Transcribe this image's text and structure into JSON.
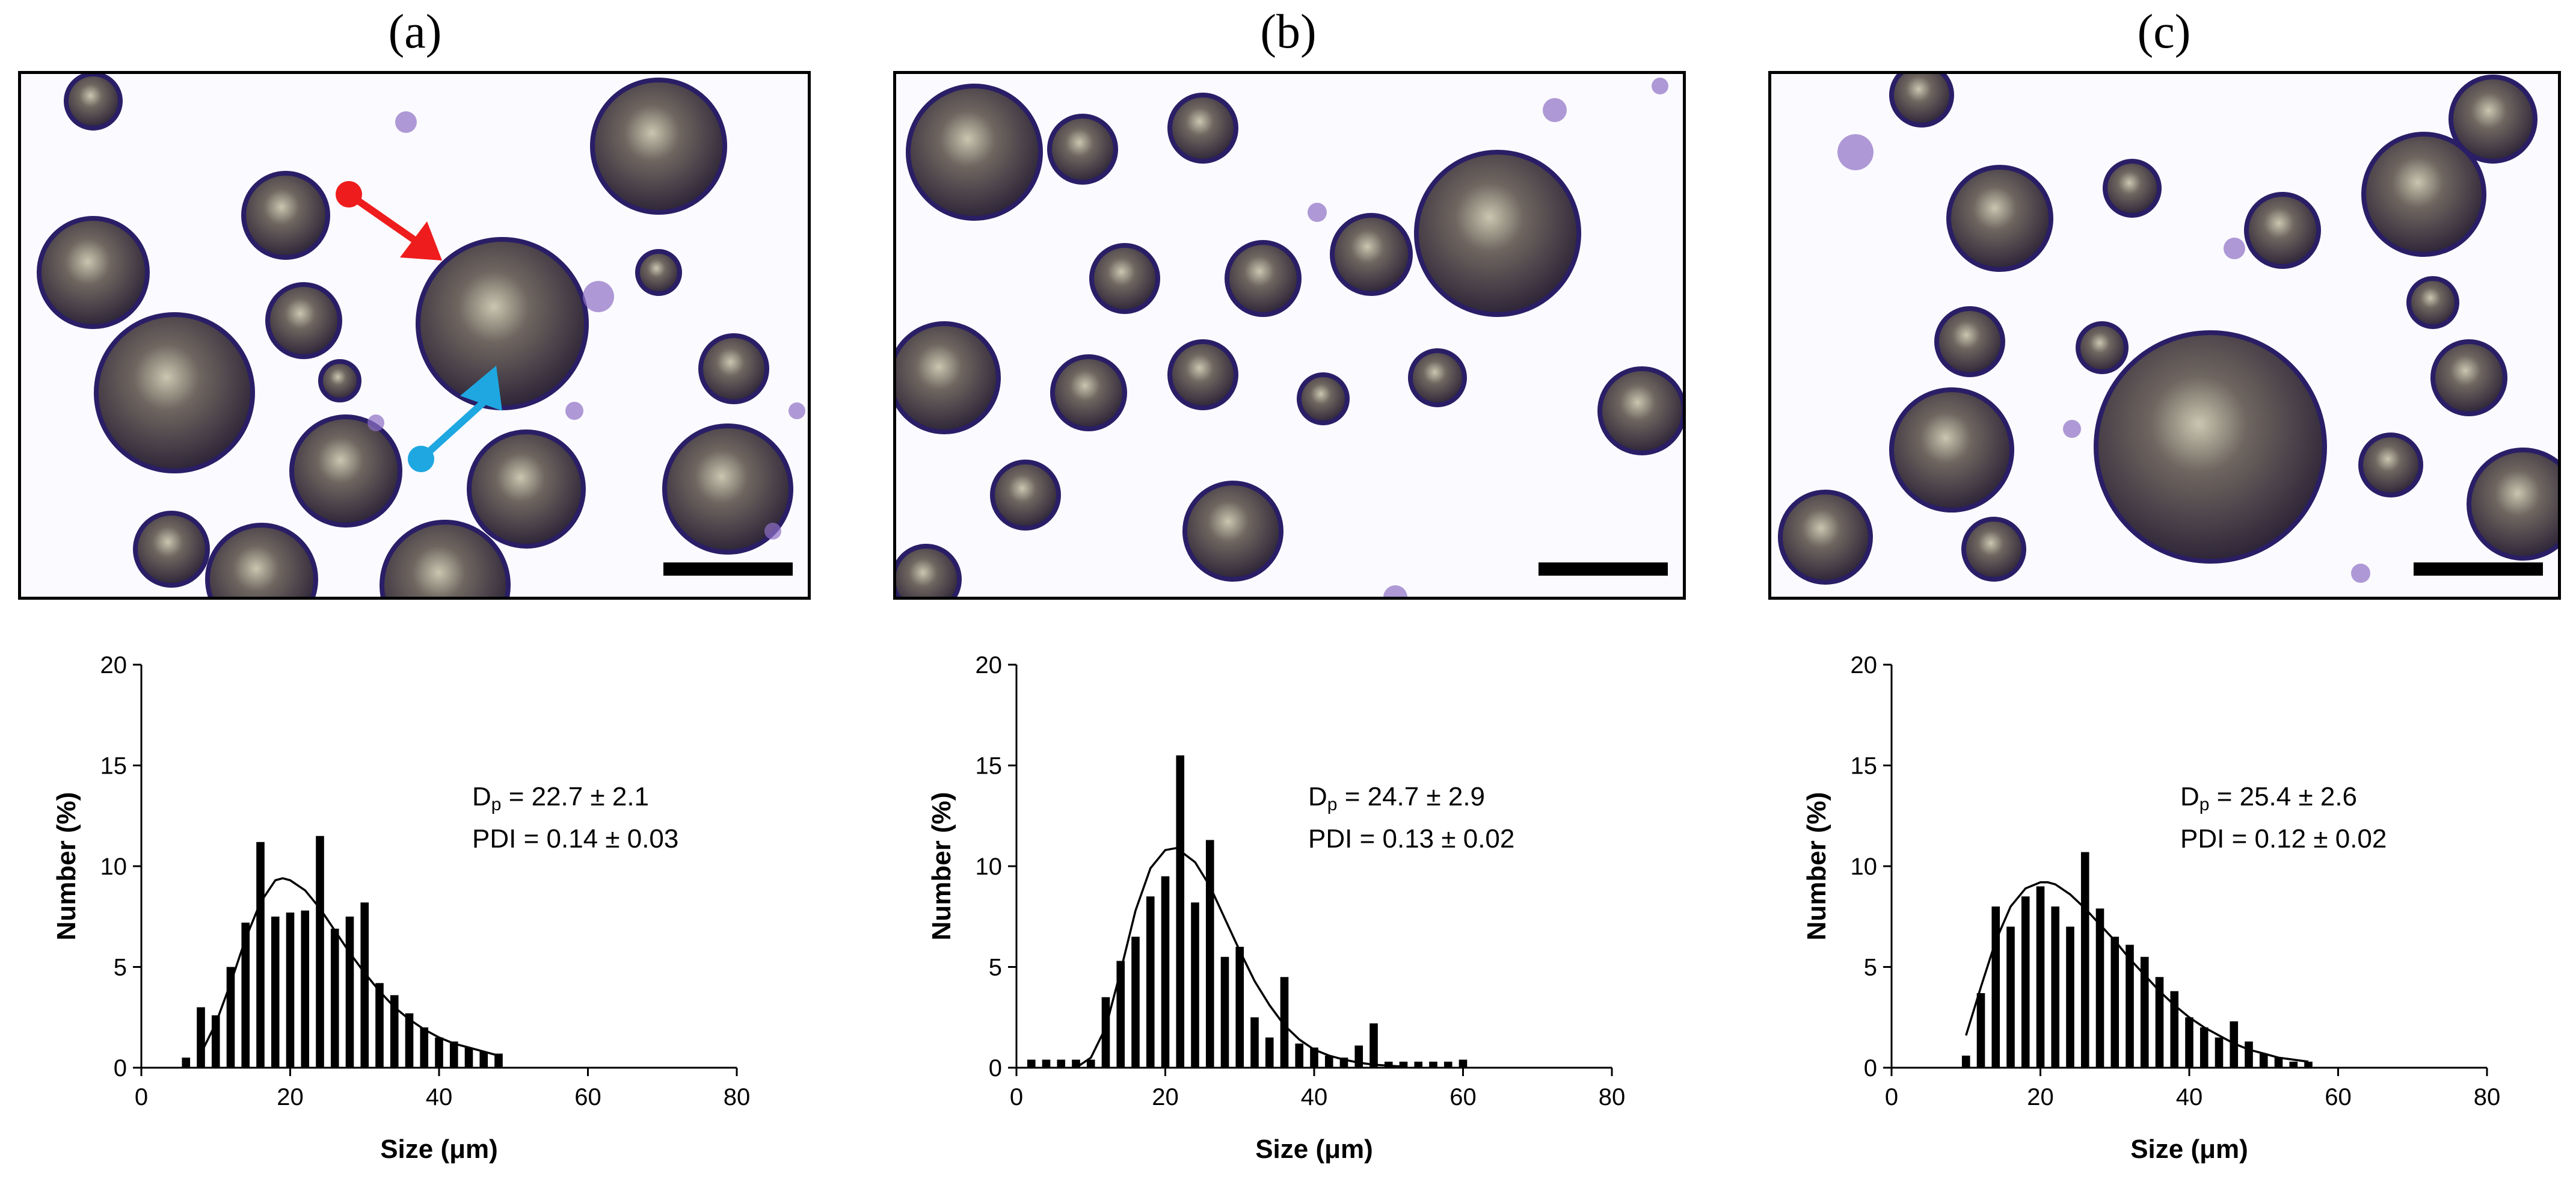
{
  "panels": [
    {
      "label": "(a)",
      "chart_index": 0,
      "annotation": {
        "dp_prefix": "D",
        "dp_sub": "p",
        "dp_text": " = 22.7 ± 2.1",
        "pdi_text": "PDI = 0.14 ± 0.03"
      }
    },
    {
      "label": "(b)",
      "chart_index": 1,
      "annotation": {
        "dp_prefix": "D",
        "dp_sub": "p",
        "dp_text": " = 24.7 ± 2.9",
        "pdi_text": "PDI = 0.13 ± 0.02"
      }
    },
    {
      "label": "(c)",
      "chart_index": 2,
      "annotation": {
        "dp_prefix": "D",
        "dp_sub": "p",
        "dp_text": " = 25.4 ± 2.6",
        "pdi_text": "PDI = 0.12 ± 0.02"
      }
    }
  ],
  "colors": {
    "arrow_red": "#ee1c1c",
    "arrow_blue": "#1ea7e0",
    "bars": "#000000",
    "particle_border": "#2a1e66",
    "particle_fill": "#3d3342"
  },
  "chart_data": [
    {
      "type": "bar",
      "title": "(a)",
      "xlabel": "Size (μm)",
      "ylabel": "Number (%)",
      "xlim": [
        0,
        80
      ],
      "ylim": [
        0,
        20
      ],
      "xticks": [
        0,
        20,
        40,
        60,
        80
      ],
      "yticks": [
        0,
        5,
        10,
        15,
        20
      ],
      "x": [
        6,
        8,
        10,
        12,
        14,
        16,
        18,
        20,
        22,
        24,
        26,
        28,
        30,
        32,
        34,
        36,
        38,
        40,
        42,
        44,
        46,
        48
      ],
      "values": [
        0.5,
        3.0,
        2.6,
        5.0,
        7.2,
        11.2,
        7.5,
        7.7,
        7.8,
        11.5,
        6.9,
        7.5,
        8.2,
        4.2,
        3.6,
        2.7,
        2.0,
        1.5,
        1.3,
        1.0,
        0.8,
        0.7
      ],
      "fit_curve": {
        "peak_x": 19,
        "peak_y": 9.4,
        "x": [
          8,
          10,
          12,
          14,
          16,
          18,
          19,
          20,
          22,
          24,
          26,
          28,
          30,
          32,
          34,
          36,
          38,
          40,
          42,
          44,
          46,
          48
        ],
        "y": [
          0.7,
          2.2,
          4.2,
          6.4,
          8.2,
          9.3,
          9.4,
          9.3,
          8.8,
          7.9,
          6.8,
          5.7,
          4.7,
          3.8,
          3.0,
          2.4,
          1.9,
          1.5,
          1.2,
          1.0,
          0.8,
          0.6
        ]
      },
      "annotation": "Dp = 22.7 ± 2.1; PDI = 0.14 ± 0.03"
    },
    {
      "type": "bar",
      "title": "(b)",
      "xlabel": "Size (μm)",
      "ylabel": "Number (%)",
      "xlim": [
        0,
        80
      ],
      "ylim": [
        0,
        20
      ],
      "xticks": [
        0,
        20,
        40,
        60,
        80
      ],
      "yticks": [
        0,
        5,
        10,
        15,
        20
      ],
      "x": [
        2,
        4,
        6,
        8,
        10,
        12,
        14,
        16,
        18,
        20,
        22,
        24,
        26,
        28,
        30,
        32,
        34,
        36,
        38,
        40,
        42,
        44,
        46,
        48,
        50,
        52,
        54,
        56,
        58,
        60
      ],
      "values": [
        0.4,
        0.4,
        0.4,
        0.4,
        0.4,
        3.5,
        5.3,
        6.5,
        8.5,
        9.5,
        15.5,
        8.2,
        11.3,
        5.5,
        6.0,
        2.5,
        1.5,
        4.5,
        1.2,
        1.0,
        0.6,
        0.5,
        1.1,
        2.2,
        0.3,
        0.3,
        0.3,
        0.3,
        0.3,
        0.4
      ],
      "fit_curve": {
        "peak_x": 21.5,
        "peak_y": 10.9,
        "x": [
          8,
          10,
          12,
          14,
          16,
          18,
          20,
          21.5,
          24,
          26,
          28,
          30,
          32,
          34,
          36,
          38,
          40,
          42,
          44,
          46,
          48,
          50,
          52
        ],
        "y": [
          0.0,
          0.5,
          2.0,
          4.8,
          7.8,
          9.9,
          10.8,
          10.9,
          10.2,
          9.0,
          7.4,
          5.8,
          4.3,
          3.1,
          2.1,
          1.4,
          0.9,
          0.6,
          0.4,
          0.25,
          0.15,
          0.1,
          0.05
        ]
      },
      "annotation": "Dp = 24.7 ± 2.9; PDI = 0.13 ± 0.02"
    },
    {
      "type": "bar",
      "title": "(c)",
      "xlabel": "Size (μm)",
      "ylabel": "Number (%)",
      "xlim": [
        0,
        80
      ],
      "ylim": [
        0,
        20
      ],
      "xticks": [
        0,
        20,
        40,
        60,
        80
      ],
      "yticks": [
        0,
        5,
        10,
        15,
        20
      ],
      "x": [
        10,
        12,
        14,
        16,
        18,
        20,
        22,
        24,
        26,
        28,
        30,
        32,
        34,
        36,
        38,
        40,
        42,
        44,
        46,
        48,
        50,
        52,
        54,
        56
      ],
      "values": [
        0.6,
        3.7,
        8.0,
        7.0,
        8.5,
        9.0,
        8.0,
        7.0,
        10.7,
        7.9,
        6.5,
        6.1,
        5.5,
        4.5,
        3.8,
        2.5,
        2.0,
        1.5,
        2.3,
        1.3,
        0.7,
        0.5,
        0.3,
        0.3
      ],
      "fit_curve": {
        "peak_x": 21,
        "peak_y": 9.2,
        "x": [
          10,
          12,
          14,
          16,
          18,
          20,
          21,
          22,
          24,
          26,
          28,
          30,
          32,
          34,
          36,
          38,
          40,
          42,
          44,
          46,
          48,
          50,
          52,
          54,
          56
        ],
        "y": [
          1.6,
          4.0,
          6.3,
          8.0,
          8.9,
          9.2,
          9.2,
          9.1,
          8.6,
          7.9,
          7.1,
          6.3,
          5.4,
          4.6,
          3.8,
          3.1,
          2.5,
          2.0,
          1.6,
          1.2,
          0.9,
          0.7,
          0.5,
          0.4,
          0.3
        ]
      },
      "annotation": "Dp = 25.4 ± 2.6; PDI = 0.12 ± 0.02"
    }
  ]
}
